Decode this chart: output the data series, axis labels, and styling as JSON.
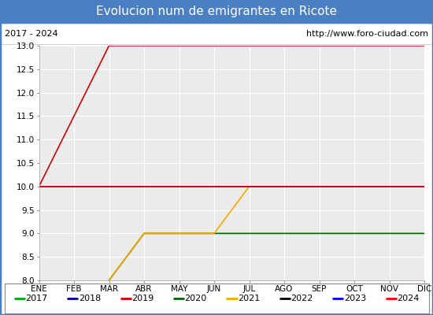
{
  "title": "Evolucion num de emigrantes en Ricote",
  "subtitle_left": "2017 - 2024",
  "subtitle_right": "http://www.foro-ciudad.com",
  "title_bg_color": "#4a7fc1",
  "title_text_color": "#ffffff",
  "subtitle_bg_color": "#ffffff",
  "subtitle_text_color": "#000000",
  "plot_bg_color": "#ebebeb",
  "grid_color": "#ffffff",
  "ylim": [
    8.0,
    13.0
  ],
  "yticks": [
    8.0,
    8.5,
    9.0,
    9.5,
    10.0,
    10.5,
    11.0,
    11.5,
    12.0,
    12.5,
    13.0
  ],
  "months": [
    "ENE",
    "FEB",
    "MAR",
    "ABR",
    "MAY",
    "JUN",
    "JUL",
    "AGO",
    "SEP",
    "OCT",
    "NOV",
    "DIC"
  ],
  "series": [
    {
      "label": "2017",
      "color": "#00aa00",
      "data": [
        [
          1,
          10
        ],
        [
          12,
          10
        ]
      ]
    },
    {
      "label": "2018",
      "color": "#00008b",
      "data": [
        [
          1,
          10
        ],
        [
          12,
          10
        ]
      ]
    },
    {
      "label": "2019",
      "color": "#cc0000",
      "data": [
        [
          1,
          10
        ],
        [
          2,
          11.5
        ],
        [
          3,
          13
        ],
        [
          12,
          13
        ]
      ]
    },
    {
      "label": "2020",
      "color": "#006400",
      "data": [
        [
          3,
          8.0
        ],
        [
          4,
          9.0
        ],
        [
          12,
          9.0
        ]
      ]
    },
    {
      "label": "2021",
      "color": "#ffa500",
      "data": [
        [
          3,
          8.0
        ],
        [
          4,
          9.0
        ],
        [
          5,
          9.0
        ],
        [
          6,
          9.0
        ],
        [
          7,
          10.0
        ],
        [
          12,
          10.0
        ]
      ]
    },
    {
      "label": "2022",
      "color": "#000000",
      "data": [
        [
          1,
          10
        ],
        [
          12,
          10
        ]
      ]
    },
    {
      "label": "2023",
      "color": "#0000ff",
      "data": [
        [
          1,
          10
        ],
        [
          12,
          10
        ]
      ]
    },
    {
      "label": "2024",
      "color": "#ff0000",
      "data": [
        [
          1,
          10
        ],
        [
          12,
          10
        ]
      ]
    }
  ],
  "legend_border_color": "#888888",
  "outer_border_color": "#4a7fc1",
  "title_fontsize": 11,
  "subtitle_fontsize": 8,
  "tick_fontsize": 7.5,
  "legend_fontsize": 8
}
